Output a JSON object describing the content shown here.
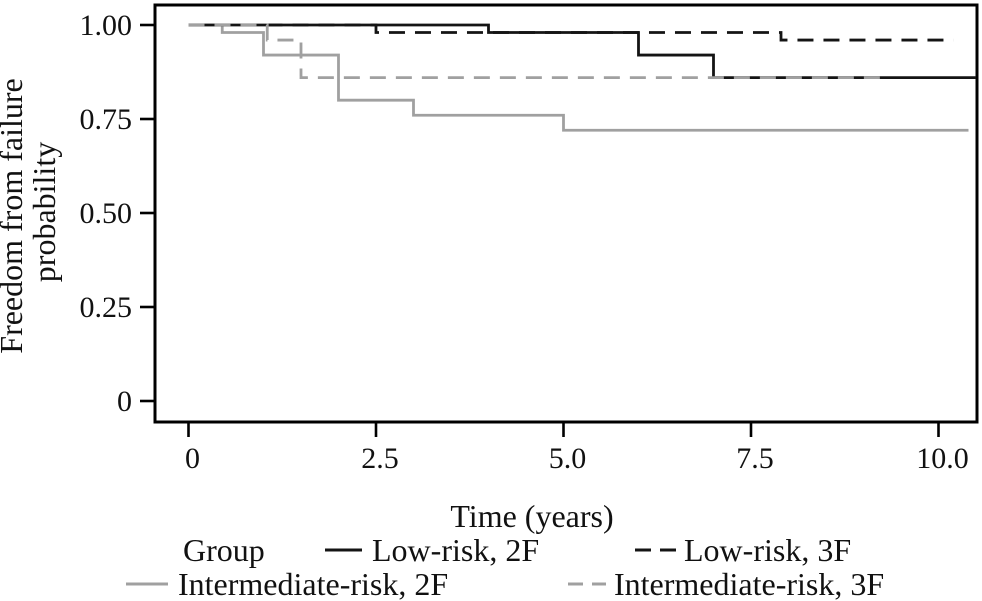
{
  "figure": {
    "kind": "kaplan-meier-survival-plot",
    "background": "#ffffff"
  },
  "colors": {
    "black": "#141414",
    "gray": "#a0a0a0",
    "frame": "#000000"
  },
  "y_axis": {
    "title_line1": "Freedom from failure",
    "title_line2": "probability",
    "ticks": [
      {
        "value": 1.0,
        "label": "1.00"
      },
      {
        "value": 0.75,
        "label": "0.75"
      },
      {
        "value": 0.5,
        "label": "0.50"
      },
      {
        "value": 0.25,
        "label": "0.25"
      },
      {
        "value": 0.0,
        "label": "0"
      }
    ]
  },
  "x_axis": {
    "title": "Time (years)",
    "ticks": [
      {
        "value": 0,
        "label": "0"
      },
      {
        "value": 2.5,
        "label": "2.5"
      },
      {
        "value": 5.0,
        "label": "5.0"
      },
      {
        "value": 7.5,
        "label": "7.5"
      },
      {
        "value": 10.0,
        "label": "10.0"
      }
    ]
  },
  "legend": {
    "title": "Group",
    "items": [
      {
        "label": "Low-risk, 2F",
        "color": "black",
        "style": "solid"
      },
      {
        "label": "Low-risk, 3F",
        "color": "black",
        "style": "dashed"
      },
      {
        "label": "Intermediate-risk, 2F",
        "color": "gray",
        "style": "solid"
      },
      {
        "label": "Intermediate-risk, 3F",
        "color": "gray",
        "style": "dashed"
      }
    ]
  },
  "chart_data": {
    "type": "line",
    "subtype": "step-survival",
    "xlabel": "Time (years)",
    "ylabel": "Freedom from failure probability",
    "xlim": [
      0,
      10.5
    ],
    "ylim": [
      0,
      1.0
    ],
    "grid": false,
    "legend_position": "bottom",
    "series": [
      {
        "name": "Low-risk, 2F",
        "color": "black",
        "style": "solid",
        "steps": [
          [
            0,
            1.0
          ],
          [
            4.0,
            0.98
          ],
          [
            6.0,
            0.92
          ],
          [
            7.0,
            0.86
          ]
        ],
        "end_time": 10.5
      },
      {
        "name": "Low-risk, 3F",
        "color": "black",
        "style": "dashed",
        "steps": [
          [
            0,
            1.0
          ],
          [
            2.5,
            0.98
          ],
          [
            7.9,
            0.96
          ]
        ],
        "end_time": 10.2
      },
      {
        "name": "Intermediate-risk, 2F",
        "color": "gray",
        "style": "solid",
        "steps": [
          [
            0,
            1.0
          ],
          [
            0.45,
            0.98
          ],
          [
            1.0,
            0.92
          ],
          [
            2.0,
            0.8
          ],
          [
            3.0,
            0.76
          ],
          [
            5.0,
            0.72
          ]
        ],
        "end_time": 10.4
      },
      {
        "name": "Intermediate-risk, 3F",
        "color": "gray",
        "style": "dashed",
        "steps": [
          [
            0,
            1.0
          ],
          [
            1.05,
            0.96
          ],
          [
            1.5,
            0.86
          ]
        ],
        "end_time": 9.3
      }
    ]
  }
}
